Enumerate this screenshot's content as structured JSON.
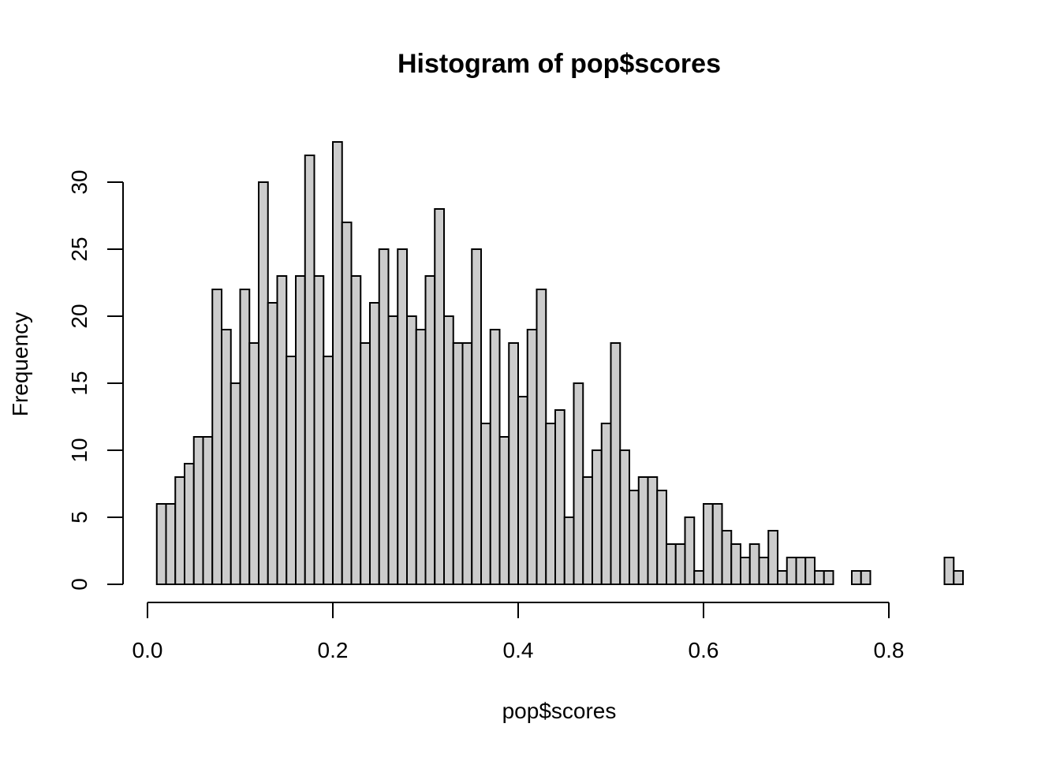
{
  "chart_data": {
    "type": "bar",
    "title": "Histogram of pop$scores",
    "xlabel": "pop$scores",
    "ylabel": "Frequency",
    "bin_width": 0.01,
    "bins_start": 0.01,
    "counts": [
      6,
      6,
      8,
      9,
      11,
      11,
      22,
      19,
      15,
      22,
      18,
      30,
      21,
      23,
      17,
      23,
      32,
      23,
      17,
      33,
      27,
      23,
      18,
      21,
      25,
      20,
      25,
      20,
      19,
      23,
      28,
      20,
      18,
      18,
      25,
      12,
      19,
      11,
      18,
      14,
      19,
      22,
      12,
      13,
      5,
      15,
      8,
      10,
      12,
      18,
      10,
      7,
      8,
      8,
      7,
      3,
      3,
      5,
      1,
      6,
      6,
      4,
      3,
      2,
      3,
      2,
      4,
      1,
      2,
      2,
      2,
      1,
      1,
      0,
      0,
      1,
      1,
      0,
      0,
      0,
      0,
      0,
      0,
      0,
      0,
      2,
      1
    ],
    "xlim": [
      0.0,
      0.8
    ],
    "ylim": [
      0,
      30
    ],
    "xticks": [
      0.0,
      0.2,
      0.4,
      0.6,
      0.8
    ],
    "xtick_labels": [
      "0.0",
      "0.2",
      "0.4",
      "0.6",
      "0.8"
    ],
    "yticks": [
      0,
      5,
      10,
      15,
      20,
      25,
      30
    ],
    "ytick_labels": [
      "0",
      "5",
      "10",
      "15",
      "20",
      "25",
      "30"
    ],
    "grid": false,
    "colors": {
      "bar_fill": "#cccccc",
      "bar_stroke": "#000000"
    }
  }
}
